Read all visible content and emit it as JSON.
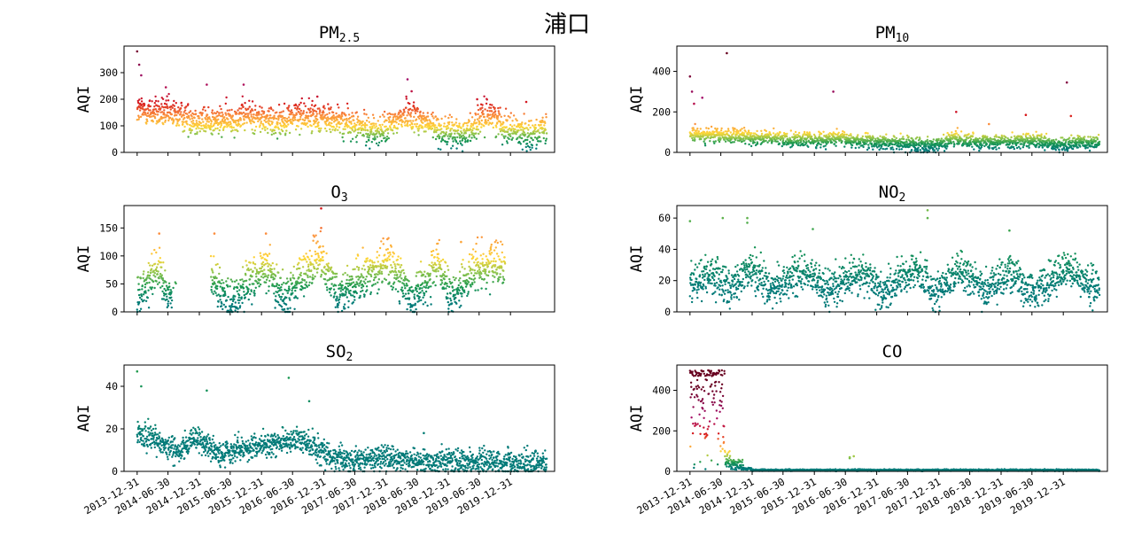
{
  "figure": {
    "suptitle": "浦口",
    "x_tick_labels": [
      "2013-12-31",
      "2014-06-30",
      "2014-12-31",
      "2015-06-30",
      "2015-12-31",
      "2016-06-30",
      "2016-12-31",
      "2017-06-30",
      "2017-12-31",
      "2018-06-30",
      "2018-12-31",
      "2019-06-30",
      "2019-12-31"
    ],
    "aqi_colors": {
      "good": "#007a78",
      "fair": "#1a9850",
      "moderate": "#8cc44a",
      "unhealthy_sensitive": "#fed737",
      "unhealthy": "#fb8c3c",
      "very_unhealthy": "#d7191c",
      "hazardous": "#a50f6a",
      "extreme": "#67001f"
    }
  },
  "chart_data": [
    {
      "id": "pm25",
      "type": "scatter",
      "title_base": "PM",
      "title_sub": "2.5",
      "ylabel": "AQI",
      "xlim": [
        "2013-10-15",
        "2020-09-15"
      ],
      "x_range": [
        "2013-12-31",
        "2020-07-31"
      ],
      "ylim": [
        0,
        400
      ],
      "yticks": [
        0,
        100,
        200,
        300
      ],
      "show_xticklabels": false,
      "baseline": [
        [
          0.0,
          160
        ],
        [
          0.1,
          140
        ],
        [
          0.15,
          120
        ],
        [
          0.2,
          115
        ],
        [
          0.27,
          140
        ],
        [
          0.33,
          115
        ],
        [
          0.4,
          140
        ],
        [
          0.45,
          130
        ],
        [
          0.5,
          115
        ],
        [
          0.53,
          100
        ],
        [
          0.58,
          80
        ],
        [
          0.6,
          80
        ],
        [
          0.66,
          150
        ],
        [
          0.7,
          115
        ],
        [
          0.75,
          75
        ],
        [
          0.8,
          70
        ],
        [
          0.86,
          150
        ],
        [
          0.9,
          95
        ],
        [
          0.95,
          70
        ],
        [
          1.0,
          80
        ]
      ],
      "spread": 28,
      "spikes": [
        [
          0.0,
          380
        ],
        [
          0.005,
          330
        ],
        [
          0.01,
          290
        ],
        [
          0.07,
          245
        ],
        [
          0.17,
          255
        ],
        [
          0.26,
          255
        ],
        [
          0.44,
          210
        ],
        [
          0.66,
          275
        ],
        [
          0.67,
          230
        ],
        [
          0.83,
          200
        ],
        [
          0.95,
          190
        ]
      ]
    },
    {
      "id": "pm10",
      "type": "scatter",
      "title_base": "PM",
      "title_sub": "10",
      "ylabel": "AQI",
      "xlim": [
        "2013-10-15",
        "2020-09-15"
      ],
      "x_range": [
        "2013-12-31",
        "2020-07-31"
      ],
      "ylim": [
        0,
        525
      ],
      "yticks": [
        0,
        200,
        400
      ],
      "show_xticklabels": false,
      "baseline": [
        [
          0.0,
          90
        ],
        [
          0.1,
          80
        ],
        [
          0.2,
          70
        ],
        [
          0.3,
          60
        ],
        [
          0.35,
          70
        ],
        [
          0.45,
          50
        ],
        [
          0.5,
          45
        ],
        [
          0.55,
          40
        ],
        [
          0.6,
          35
        ],
        [
          0.65,
          70
        ],
        [
          0.7,
          55
        ],
        [
          0.8,
          55
        ],
        [
          0.85,
          55
        ],
        [
          0.9,
          30
        ],
        [
          0.95,
          50
        ],
        [
          1.0,
          50
        ]
      ],
      "spread": 18,
      "spikes": [
        [
          0.0,
          375
        ],
        [
          0.005,
          300
        ],
        [
          0.01,
          240
        ],
        [
          0.03,
          270
        ],
        [
          0.09,
          490
        ],
        [
          0.35,
          300
        ],
        [
          0.65,
          200
        ],
        [
          0.73,
          140
        ],
        [
          0.82,
          185
        ],
        [
          0.92,
          345
        ],
        [
          0.93,
          180
        ]
      ]
    },
    {
      "id": "o3",
      "type": "scatter",
      "title_base": "O",
      "title_sub": "3",
      "ylabel": "AQI",
      "xlim": [
        "2013-10-15",
        "2020-09-15"
      ],
      "x_range": [
        "2013-12-31",
        "2019-11-30"
      ],
      "ylim": [
        0,
        190
      ],
      "yticks": [
        0,
        50,
        100,
        150
      ],
      "show_xticklabels": false,
      "gaps": [
        [
          0.095,
          0.2
        ]
      ],
      "baseline": [
        [
          0.0,
          25
        ],
        [
          0.05,
          80
        ],
        [
          0.09,
          30
        ],
        [
          0.2,
          70
        ],
        [
          0.25,
          15
        ],
        [
          0.35,
          80
        ],
        [
          0.4,
          25
        ],
        [
          0.5,
          100
        ],
        [
          0.55,
          30
        ],
        [
          0.68,
          90
        ],
        [
          0.75,
          25
        ],
        [
          0.82,
          85
        ],
        [
          0.85,
          20
        ],
        [
          0.92,
          80
        ],
        [
          1.0,
          85
        ]
      ],
      "spread": 20,
      "spikes": [
        [
          0.06,
          140
        ],
        [
          0.21,
          140
        ],
        [
          0.35,
          140
        ],
        [
          0.5,
          185
        ],
        [
          0.5,
          150
        ],
        [
          0.68,
          130
        ],
        [
          0.88,
          125
        ]
      ]
    },
    {
      "id": "no2",
      "type": "scatter",
      "title_base": "NO",
      "title_sub": "2",
      "ylabel": "AQI",
      "xlim": [
        "2013-10-15",
        "2020-09-15"
      ],
      "x_range": [
        "2013-12-31",
        "2020-07-31"
      ],
      "ylim": [
        0,
        68
      ],
      "yticks": [
        0,
        20,
        40,
        60
      ],
      "show_xticklabels": false,
      "baseline": [
        [
          0.0,
          18
        ],
        [
          0.05,
          25
        ],
        [
          0.1,
          15
        ],
        [
          0.15,
          28
        ],
        [
          0.2,
          14
        ],
        [
          0.28,
          26
        ],
        [
          0.33,
          14
        ],
        [
          0.42,
          26
        ],
        [
          0.47,
          12
        ],
        [
          0.55,
          28
        ],
        [
          0.6,
          12
        ],
        [
          0.66,
          28
        ],
        [
          0.72,
          14
        ],
        [
          0.78,
          26
        ],
        [
          0.84,
          12
        ],
        [
          0.92,
          28
        ],
        [
          1.0,
          14
        ]
      ],
      "spread": 6,
      "spikes": [
        [
          0.0,
          58
        ],
        [
          0.08,
          60
        ],
        [
          0.14,
          60
        ],
        [
          0.14,
          57
        ],
        [
          0.3,
          53
        ],
        [
          0.58,
          65
        ],
        [
          0.58,
          60
        ],
        [
          0.78,
          52
        ]
      ]
    },
    {
      "id": "so2",
      "type": "scatter",
      "title_base": "SO",
      "title_sub": "2",
      "ylabel": "AQI",
      "xlim": [
        "2013-10-15",
        "2020-09-15"
      ],
      "x_range": [
        "2013-12-31",
        "2020-07-31"
      ],
      "ylim": [
        0,
        50
      ],
      "yticks": [
        0,
        20,
        40
      ],
      "show_xticklabels": true,
      "baseline": [
        [
          0.0,
          18
        ],
        [
          0.1,
          10
        ],
        [
          0.15,
          15
        ],
        [
          0.2,
          8
        ],
        [
          0.3,
          12
        ],
        [
          0.4,
          15
        ],
        [
          0.45,
          9
        ],
        [
          0.5,
          6
        ],
        [
          0.55,
          5
        ],
        [
          0.6,
          6
        ],
        [
          0.7,
          5
        ],
        [
          0.8,
          5
        ],
        [
          0.9,
          4
        ],
        [
          1.0,
          4
        ]
      ],
      "spread": 3,
      "spikes": [
        [
          0.0,
          47
        ],
        [
          0.01,
          40
        ],
        [
          0.17,
          38
        ],
        [
          0.37,
          44
        ],
        [
          0.42,
          33
        ],
        [
          0.7,
          18
        ]
      ]
    },
    {
      "id": "co",
      "type": "scatter",
      "title_base": "CO",
      "title_sub": "",
      "ylabel": "AQI",
      "xlim": [
        "2013-10-15",
        "2020-09-15"
      ],
      "x_range": [
        "2013-12-31",
        "2020-07-31"
      ],
      "ylim": [
        0,
        525
      ],
      "yticks": [
        0,
        200,
        400
      ],
      "show_xticklabels": true,
      "co_special": true,
      "baseline": [
        [
          0.0,
          6
        ],
        [
          1.0,
          6
        ]
      ],
      "spread": 2,
      "spikes": [
        [
          0.39,
          65
        ],
        [
          0.39,
          70
        ],
        [
          0.4,
          75
        ]
      ]
    }
  ]
}
